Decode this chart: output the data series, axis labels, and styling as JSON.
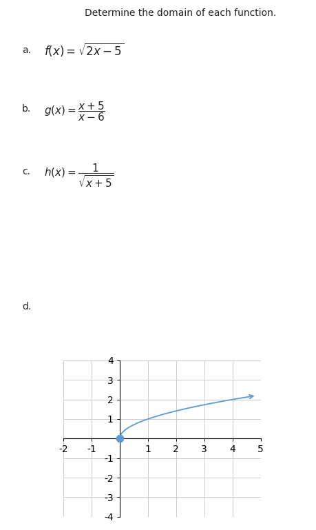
{
  "title": "Determine the domain of each function.",
  "title_fontsize": 10,
  "title_color": "#222222",
  "background_color": "#ffffff",
  "separator_color": "#2d2d2d",
  "xlim": [
    -2,
    5
  ],
  "ylim": [
    -4,
    4
  ],
  "xticks": [
    -2,
    -1,
    0,
    1,
    2,
    3,
    4,
    5
  ],
  "yticks": [
    -4,
    -3,
    -2,
    -1,
    0,
    1,
    2,
    3,
    4
  ],
  "curve_color": "#5b9bd5",
  "dot_color": "#5b9bd5",
  "dot_x": 0,
  "dot_y": 0,
  "dot_size": 55,
  "curve_start_x": 0,
  "curve_end_x": 4.85,
  "arrow_color": "#5b9bd5",
  "grid_color": "#cccccc"
}
